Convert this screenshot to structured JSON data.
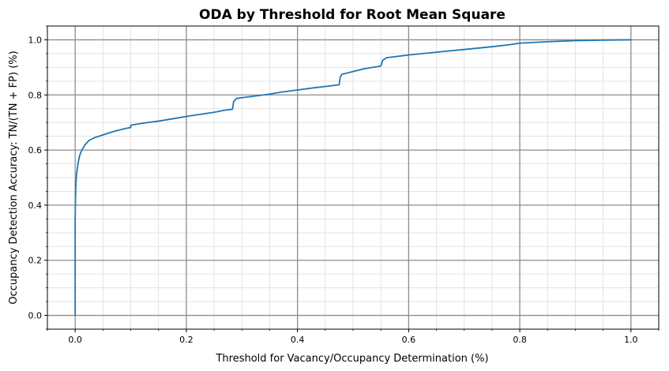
{
  "chart_data": {
    "type": "line",
    "title": "ODA by Threshold for Root Mean Square",
    "xlabel": "Threshold for Vacancy/Occupancy Determination (%)",
    "ylabel": "Occupancy Detection Accuracy: TN/(TN + FP) (%)",
    "xlim": [
      -0.05,
      1.05
    ],
    "ylim": [
      -0.05,
      1.05
    ],
    "x_ticks": [
      0.0,
      0.2,
      0.4,
      0.6,
      0.8,
      1.0
    ],
    "x_tick_labels": [
      "0.0",
      "0.2",
      "0.4",
      "0.6",
      "0.8",
      "1.0"
    ],
    "y_ticks": [
      0.0,
      0.2,
      0.4,
      0.6,
      0.8,
      1.0
    ],
    "y_tick_labels": [
      "0.0",
      "0.2",
      "0.4",
      "0.6",
      "0.8",
      "1.0"
    ],
    "minor_step": 0.05,
    "grid": true,
    "line_color": "#1f77b4",
    "major_grid_color": "#8c8c8c",
    "minor_grid_color": "#e3e3e3",
    "series": [
      {
        "x": [
          0.0,
          0.0,
          0.0005,
          0.001,
          0.002,
          0.003,
          0.005,
          0.008,
          0.012,
          0.018,
          0.025,
          0.035,
          0.05,
          0.07,
          0.09,
          0.1,
          0.1,
          0.12,
          0.15,
          0.18,
          0.2,
          0.22,
          0.25,
          0.27,
          0.283,
          0.285,
          0.29,
          0.3,
          0.32,
          0.35,
          0.37,
          0.4,
          0.43,
          0.46,
          0.475,
          0.477,
          0.48,
          0.5,
          0.52,
          0.55,
          0.553,
          0.56,
          0.6,
          0.65,
          0.7,
          0.75,
          0.78,
          0.8,
          0.85,
          0.9,
          0.95,
          1.0
        ],
        "y": [
          0.0,
          0.35,
          0.42,
          0.46,
          0.5,
          0.52,
          0.55,
          0.58,
          0.6,
          0.62,
          0.635,
          0.645,
          0.655,
          0.668,
          0.678,
          0.682,
          0.69,
          0.697,
          0.705,
          0.715,
          0.722,
          0.728,
          0.737,
          0.745,
          0.748,
          0.775,
          0.787,
          0.79,
          0.795,
          0.803,
          0.81,
          0.818,
          0.826,
          0.833,
          0.837,
          0.865,
          0.875,
          0.885,
          0.895,
          0.905,
          0.925,
          0.935,
          0.945,
          0.955,
          0.965,
          0.975,
          0.982,
          0.988,
          0.993,
          0.997,
          0.999,
          1.0
        ]
      }
    ]
  }
}
